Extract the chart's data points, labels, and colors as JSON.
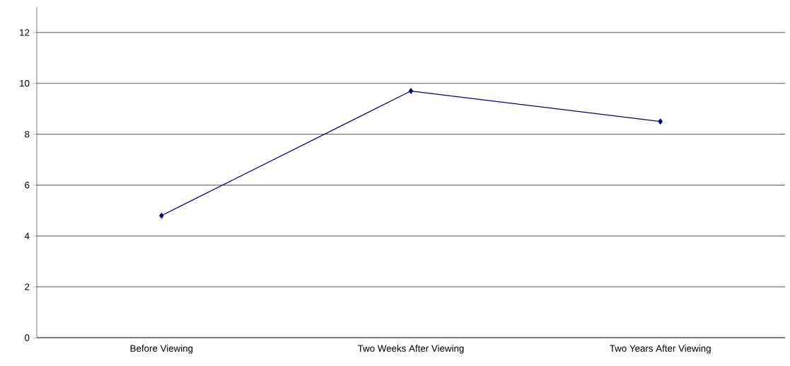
{
  "chart_data": {
    "type": "line",
    "categories": [
      "Before Viewing",
      "Two Weeks After Viewing",
      "Two Years After Viewing"
    ],
    "values": [
      4.8,
      9.7,
      8.5
    ],
    "color": "#000080",
    "ylim": [
      0,
      13
    ],
    "yticks": [
      0,
      2,
      4,
      6,
      8,
      10,
      12
    ],
    "grid": "y",
    "marker": "diamond",
    "line_style": "solid"
  }
}
